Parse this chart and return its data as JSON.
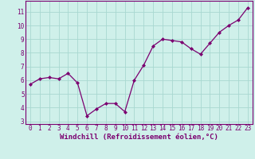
{
  "x": [
    0,
    1,
    2,
    3,
    4,
    5,
    6,
    7,
    8,
    9,
    10,
    11,
    12,
    13,
    14,
    15,
    16,
    17,
    18,
    19,
    20,
    21,
    22,
    23
  ],
  "y": [
    5.7,
    6.1,
    6.2,
    6.1,
    6.5,
    5.8,
    3.4,
    3.9,
    4.3,
    4.3,
    3.7,
    6.0,
    7.1,
    8.5,
    9.0,
    8.9,
    8.8,
    8.3,
    7.9,
    8.7,
    9.5,
    10.0,
    10.4,
    11.3
  ],
  "line_color": "#7B0070",
  "marker": "D",
  "marker_size": 2.0,
  "line_width": 0.9,
  "bg_color": "#cff0ea",
  "grid_color": "#a8d8d0",
  "xlabel": "Windchill (Refroidissement éolien,°C)",
  "xlim": [
    -0.5,
    23.5
  ],
  "ylim": [
    2.8,
    11.8
  ],
  "yticks": [
    3,
    4,
    5,
    6,
    7,
    8,
    9,
    10,
    11
  ],
  "xticks": [
    0,
    1,
    2,
    3,
    4,
    5,
    6,
    7,
    8,
    9,
    10,
    11,
    12,
    13,
    14,
    15,
    16,
    17,
    18,
    19,
    20,
    21,
    22,
    23
  ],
  "tick_fontsize": 5.5,
  "xlabel_fontsize": 6.5,
  "label_color": "#7B0070",
  "spine_color": "#7B0070",
  "grid_linewidth": 0.6
}
